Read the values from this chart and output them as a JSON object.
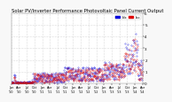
{
  "title": "Solar PV/Inverter Performance Photovoltaic Panel Current Output",
  "bg_color": "#f8f8f8",
  "plot_bg": "#ffffff",
  "grid_color": "#bbbbbb",
  "series1_color": "#0000dd",
  "series2_color": "#dd0000",
  "ylim": [
    0,
    6
  ],
  "yticks": [
    0,
    1,
    2,
    3,
    4,
    5,
    6
  ],
  "title_fontsize": 3.8,
  "tick_fontsize": 3.0,
  "legend_fontsize": 2.8
}
